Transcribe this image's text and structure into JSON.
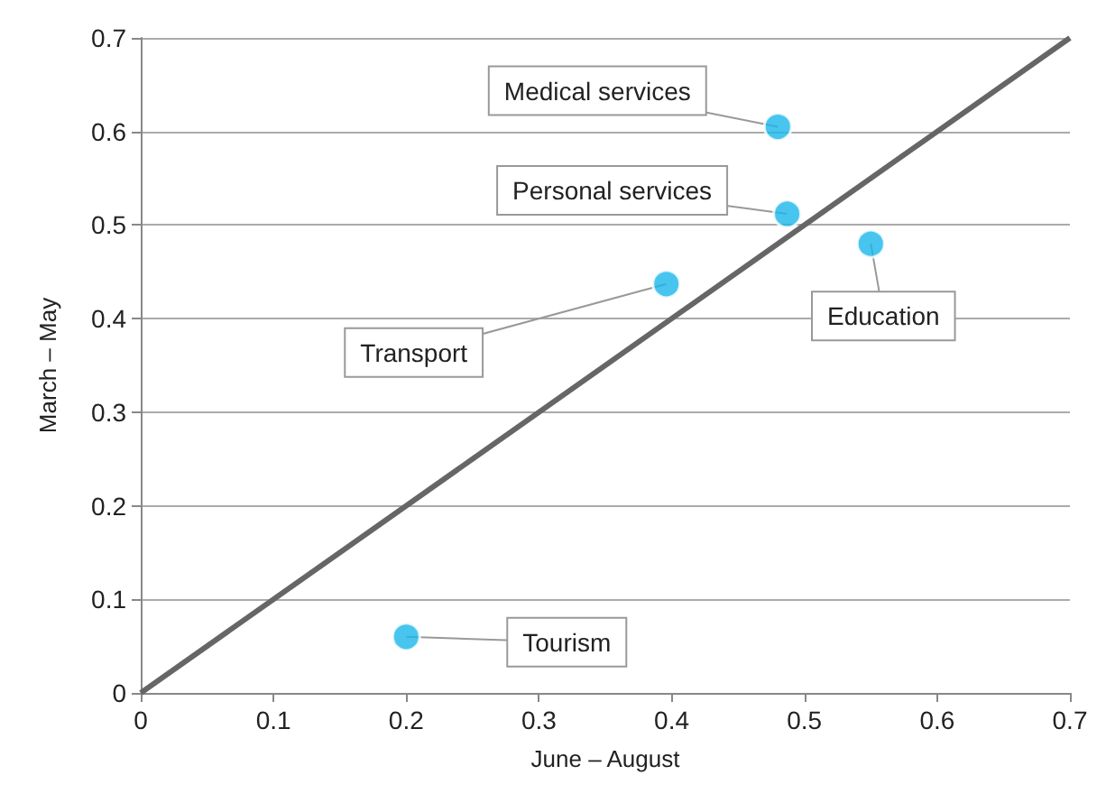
{
  "chart_data": {
    "type": "scatter",
    "xlabel": "June – August",
    "ylabel": "March – May",
    "series": [
      {
        "x": [
          0.48,
          0.487,
          0.55,
          0.396,
          0.2
        ],
        "values": [
          0.605,
          0.512,
          0.48,
          0.437,
          0.06
        ],
        "color": "#1ab7ea",
        "marker": "circle"
      },
      {
        "type": "line",
        "x": [
          0,
          0.7
        ],
        "values": [
          0,
          0.7
        ],
        "color": "#666666",
        "marker": "none",
        "line_style": "solid"
      }
    ],
    "annotations": [
      {
        "text": "Medical services",
        "x": 0.48,
        "y": 0.605
      },
      {
        "text": "Personal services",
        "x": 0.487,
        "y": 0.512
      },
      {
        "text": "Education",
        "x": 0.55,
        "y": 0.48
      },
      {
        "text": "Transport",
        "x": 0.396,
        "y": 0.437
      },
      {
        "text": "Tourism",
        "x": 0.2,
        "y": 0.06
      }
    ],
    "xlim": [
      0,
      0.7
    ],
    "ylim": [
      0,
      0.7
    ],
    "xticks": [
      0,
      0.1,
      0.2,
      0.3,
      0.4,
      0.5,
      0.6,
      0.7
    ],
    "yticks": [
      0,
      0.1,
      0.2,
      0.3,
      0.4,
      0.5,
      0.6,
      0.7
    ],
    "grid": "y"
  }
}
